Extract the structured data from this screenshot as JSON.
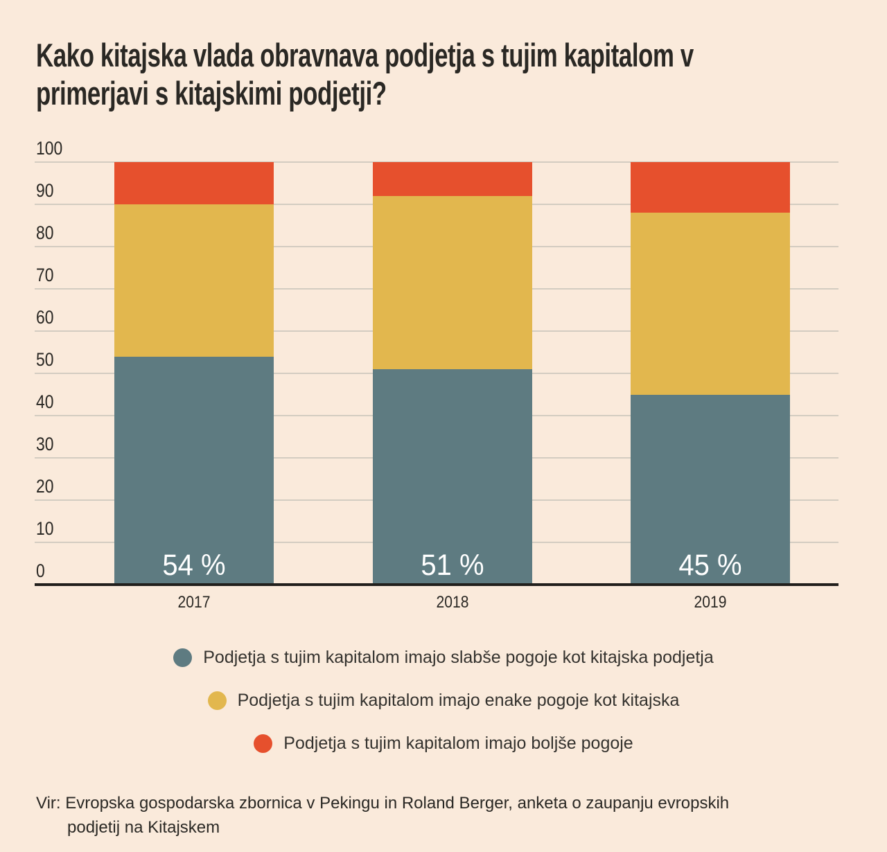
{
  "title": {
    "full": "Kako kitajska vlada obravnava podjetja s tujim kapitalom v primerjavi s kitajskimi podjetji?",
    "lines": [
      "Kako kitajska vlada obravnava podjetja s tujim kapitalom v",
      "primerjavi s kitajskimi podjetji?"
    ]
  },
  "colors": {
    "background": "#faeadb",
    "worse": "#5e7b81",
    "equal": "#e2b74e",
    "better": "#e6502d",
    "gridline": "#d3ccc1",
    "axis": "#211f1c",
    "text": "#2a2824",
    "bar_label": "#ffffff"
  },
  "chart_data": {
    "type": "bar",
    "stacked": true,
    "title": "Kako kitajska vlada obravnava podjetja s tujim kapitalom v primerjavi s kitajskimi podjetji?",
    "categories": [
      "2017",
      "2018",
      "2019"
    ],
    "series": [
      {
        "name": "Podjetja s tujim kapitalom imajo slabše pogoje kot kitajska podjetja",
        "color": "#5e7b81",
        "values": [
          54,
          51,
          45
        ]
      },
      {
        "name": "Podjetja s tujim kapitalom imajo enake pogoje kot kitajska",
        "color": "#e2b74e",
        "values": [
          36,
          41,
          43
        ]
      },
      {
        "name": "Podjetja s tujim kapitalom imajo boljše pogoje",
        "color": "#e6502d",
        "values": [
          10,
          8,
          12
        ]
      }
    ],
    "bar_labels": [
      "54 %",
      "51 %",
      "45 %"
    ],
    "xlabel": "",
    "ylabel": "",
    "ylim": [
      0,
      100
    ],
    "y_ticks": [
      0,
      10,
      20,
      30,
      40,
      50,
      60,
      70,
      80,
      90,
      100
    ],
    "grid": true,
    "legend_position": "bottom"
  },
  "source": {
    "line1": "Vir: Evropska gospodarska zbornica v Pekingu in Roland Berger, anketa o zaupanju evropskih",
    "line2": "podjetij na Kitajskem"
  }
}
